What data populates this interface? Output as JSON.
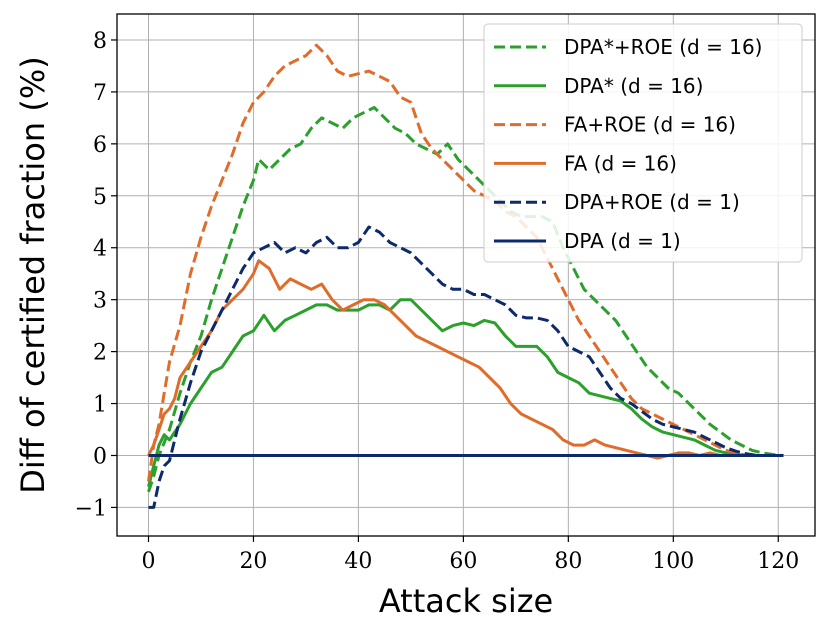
{
  "chart_data": {
    "type": "line",
    "title": "",
    "xlabel": "Attack size",
    "ylabel": "Diff of certified fraction (%)",
    "xlim": [
      -6,
      127
    ],
    "ylim": [
      -1.55,
      8.5
    ],
    "xticks": [
      0,
      20,
      40,
      60,
      80,
      100,
      120
    ],
    "yticks": [
      -1,
      0,
      1,
      2,
      3,
      4,
      5,
      6,
      7,
      8
    ],
    "xtick_labels": [
      "0",
      "20",
      "40",
      "60",
      "80",
      "100",
      "120"
    ],
    "ytick_labels": [
      "−1",
      "0",
      "1",
      "2",
      "3",
      "4",
      "5",
      "6",
      "7",
      "8"
    ],
    "grid": true,
    "legend_position": "top-right",
    "series": [
      {
        "name": "DPA*+ROE (d = 16)",
        "color": "#2ca02c",
        "dash": "dashed",
        "points": [
          [
            0,
            -0.7
          ],
          [
            1,
            -0.4
          ],
          [
            2,
            0.0
          ],
          [
            4,
            0.5
          ],
          [
            6,
            1.2
          ],
          [
            8,
            1.8
          ],
          [
            10,
            2.3
          ],
          [
            12,
            3.0
          ],
          [
            14,
            3.6
          ],
          [
            16,
            4.2
          ],
          [
            18,
            4.8
          ],
          [
            20,
            5.3
          ],
          [
            21,
            5.7
          ],
          [
            23,
            5.5
          ],
          [
            25,
            5.7
          ],
          [
            27,
            5.9
          ],
          [
            29,
            6.0
          ],
          [
            31,
            6.3
          ],
          [
            33,
            6.5
          ],
          [
            35,
            6.4
          ],
          [
            37,
            6.3
          ],
          [
            39,
            6.5
          ],
          [
            41,
            6.6
          ],
          [
            43,
            6.7
          ],
          [
            45,
            6.5
          ],
          [
            47,
            6.3
          ],
          [
            49,
            6.2
          ],
          [
            51,
            6.0
          ],
          [
            53,
            5.9
          ],
          [
            55,
            5.8
          ],
          [
            57,
            6.0
          ],
          [
            59,
            5.7
          ],
          [
            61,
            5.5
          ],
          [
            63,
            5.3
          ],
          [
            65,
            5.1
          ],
          [
            67,
            4.9
          ],
          [
            69,
            4.7
          ],
          [
            71,
            4.6
          ],
          [
            73,
            4.6
          ],
          [
            75,
            4.6
          ],
          [
            77,
            4.5
          ],
          [
            79,
            4.0
          ],
          [
            81,
            3.6
          ],
          [
            83,
            3.2
          ],
          [
            85,
            3.0
          ],
          [
            87,
            2.8
          ],
          [
            89,
            2.6
          ],
          [
            91,
            2.3
          ],
          [
            93,
            2.0
          ],
          [
            95,
            1.7
          ],
          [
            97,
            1.5
          ],
          [
            99,
            1.3
          ],
          [
            101,
            1.2
          ],
          [
            103,
            1.0
          ],
          [
            105,
            0.8
          ],
          [
            107,
            0.6
          ],
          [
            109,
            0.45
          ],
          [
            111,
            0.3
          ],
          [
            113,
            0.2
          ],
          [
            115,
            0.1
          ],
          [
            117,
            0.05
          ],
          [
            119,
            0.02
          ],
          [
            121,
            0.0
          ]
        ]
      },
      {
        "name": "DPA* (d = 16)",
        "color": "#2ca02c",
        "dash": "solid",
        "points": [
          [
            0,
            -0.6
          ],
          [
            1,
            -0.2
          ],
          [
            2,
            0.2
          ],
          [
            3,
            0.4
          ],
          [
            4,
            0.3
          ],
          [
            5,
            0.45
          ],
          [
            6,
            0.6
          ],
          [
            7,
            0.8
          ],
          [
            8,
            1.0
          ],
          [
            10,
            1.3
          ],
          [
            12,
            1.6
          ],
          [
            14,
            1.7
          ],
          [
            16,
            2.0
          ],
          [
            18,
            2.3
          ],
          [
            20,
            2.4
          ],
          [
            22,
            2.7
          ],
          [
            24,
            2.4
          ],
          [
            26,
            2.6
          ],
          [
            28,
            2.7
          ],
          [
            30,
            2.8
          ],
          [
            32,
            2.9
          ],
          [
            34,
            2.9
          ],
          [
            36,
            2.8
          ],
          [
            38,
            2.8
          ],
          [
            40,
            2.8
          ],
          [
            42,
            2.9
          ],
          [
            44,
            2.9
          ],
          [
            46,
            2.8
          ],
          [
            48,
            3.0
          ],
          [
            50,
            3.0
          ],
          [
            52,
            2.8
          ],
          [
            54,
            2.6
          ],
          [
            56,
            2.4
          ],
          [
            58,
            2.5
          ],
          [
            60,
            2.55
          ],
          [
            62,
            2.5
          ],
          [
            64,
            2.6
          ],
          [
            66,
            2.55
          ],
          [
            68,
            2.3
          ],
          [
            70,
            2.1
          ],
          [
            72,
            2.1
          ],
          [
            74,
            2.1
          ],
          [
            76,
            1.9
          ],
          [
            78,
            1.6
          ],
          [
            80,
            1.5
          ],
          [
            82,
            1.4
          ],
          [
            84,
            1.2
          ],
          [
            86,
            1.15
          ],
          [
            88,
            1.1
          ],
          [
            90,
            1.05
          ],
          [
            92,
            0.9
          ],
          [
            94,
            0.7
          ],
          [
            96,
            0.55
          ],
          [
            98,
            0.45
          ],
          [
            100,
            0.4
          ],
          [
            102,
            0.35
          ],
          [
            104,
            0.3
          ],
          [
            106,
            0.2
          ],
          [
            108,
            0.1
          ],
          [
            110,
            0.05
          ],
          [
            112,
            0.02
          ],
          [
            114,
            0.0
          ],
          [
            121,
            0.0
          ]
        ]
      },
      {
        "name": "FA+ROE (d = 16)",
        "color": "#e06c2c",
        "dash": "dashed",
        "points": [
          [
            0,
            -0.5
          ],
          [
            1,
            0.2
          ],
          [
            2,
            0.6
          ],
          [
            3,
            1.2
          ],
          [
            4,
            1.8
          ],
          [
            6,
            2.5
          ],
          [
            8,
            3.5
          ],
          [
            10,
            4.2
          ],
          [
            12,
            4.8
          ],
          [
            14,
            5.3
          ],
          [
            16,
            5.8
          ],
          [
            18,
            6.4
          ],
          [
            20,
            6.8
          ],
          [
            22,
            7.0
          ],
          [
            24,
            7.3
          ],
          [
            26,
            7.5
          ],
          [
            28,
            7.6
          ],
          [
            30,
            7.7
          ],
          [
            32,
            7.9
          ],
          [
            34,
            7.7
          ],
          [
            36,
            7.4
          ],
          [
            38,
            7.3
          ],
          [
            40,
            7.35
          ],
          [
            42,
            7.4
          ],
          [
            44,
            7.3
          ],
          [
            46,
            7.2
          ],
          [
            48,
            6.9
          ],
          [
            50,
            6.8
          ],
          [
            52,
            6.2
          ],
          [
            54,
            5.9
          ],
          [
            56,
            5.7
          ],
          [
            58,
            5.5
          ],
          [
            60,
            5.3
          ],
          [
            62,
            5.1
          ],
          [
            64,
            5.0
          ],
          [
            66,
            4.9
          ],
          [
            68,
            4.7
          ],
          [
            70,
            4.6
          ],
          [
            72,
            4.4
          ],
          [
            74,
            4.2
          ],
          [
            76,
            3.8
          ],
          [
            78,
            3.4
          ],
          [
            80,
            3.0
          ],
          [
            82,
            2.6
          ],
          [
            84,
            2.3
          ],
          [
            86,
            2.0
          ],
          [
            88,
            1.7
          ],
          [
            90,
            1.4
          ],
          [
            92,
            1.1
          ],
          [
            94,
            0.9
          ],
          [
            96,
            0.8
          ],
          [
            98,
            0.7
          ],
          [
            100,
            0.6
          ],
          [
            102,
            0.5
          ],
          [
            104,
            0.4
          ],
          [
            106,
            0.3
          ],
          [
            108,
            0.2
          ],
          [
            110,
            0.1
          ],
          [
            112,
            0.05
          ],
          [
            114,
            0.0
          ],
          [
            121,
            0.0
          ]
        ]
      },
      {
        "name": "FA (d = 16)",
        "color": "#e06c2c",
        "dash": "solid",
        "points": [
          [
            0,
            0.0
          ],
          [
            1,
            0.2
          ],
          [
            2,
            0.5
          ],
          [
            3,
            0.8
          ],
          [
            4,
            0.9
          ],
          [
            5,
            1.1
          ],
          [
            6,
            1.5
          ],
          [
            8,
            1.8
          ],
          [
            10,
            2.1
          ],
          [
            12,
            2.4
          ],
          [
            14,
            2.8
          ],
          [
            16,
            3.0
          ],
          [
            18,
            3.2
          ],
          [
            20,
            3.5
          ],
          [
            21,
            3.75
          ],
          [
            23,
            3.6
          ],
          [
            25,
            3.2
          ],
          [
            27,
            3.4
          ],
          [
            29,
            3.3
          ],
          [
            31,
            3.2
          ],
          [
            33,
            3.3
          ],
          [
            35,
            3.0
          ],
          [
            37,
            2.8
          ],
          [
            39,
            2.9
          ],
          [
            41,
            3.0
          ],
          [
            43,
            3.0
          ],
          [
            45,
            2.9
          ],
          [
            47,
            2.7
          ],
          [
            49,
            2.5
          ],
          [
            51,
            2.3
          ],
          [
            53,
            2.2
          ],
          [
            55,
            2.1
          ],
          [
            57,
            2.0
          ],
          [
            59,
            1.9
          ],
          [
            61,
            1.8
          ],
          [
            63,
            1.7
          ],
          [
            65,
            1.5
          ],
          [
            67,
            1.3
          ],
          [
            69,
            1.0
          ],
          [
            71,
            0.8
          ],
          [
            73,
            0.7
          ],
          [
            75,
            0.6
          ],
          [
            77,
            0.5
          ],
          [
            79,
            0.3
          ],
          [
            81,
            0.2
          ],
          [
            83,
            0.2
          ],
          [
            85,
            0.3
          ],
          [
            87,
            0.2
          ],
          [
            89,
            0.15
          ],
          [
            91,
            0.1
          ],
          [
            93,
            0.05
          ],
          [
            95,
            0.0
          ],
          [
            97,
            -0.05
          ],
          [
            99,
            0.0
          ],
          [
            101,
            0.05
          ],
          [
            103,
            0.05
          ],
          [
            105,
            0.0
          ],
          [
            107,
            0.05
          ],
          [
            109,
            0.0
          ],
          [
            121,
            0.0
          ]
        ]
      },
      {
        "name": "DPA+ROE (d = 1)",
        "color": "#0d2a6b",
        "dash": "dashed",
        "points": [
          [
            0,
            -1.0
          ],
          [
            1,
            -1.0
          ],
          [
            2,
            -0.5
          ],
          [
            3,
            -0.2
          ],
          [
            4,
            -0.1
          ],
          [
            5,
            0.3
          ],
          [
            6,
            0.7
          ],
          [
            8,
            1.4
          ],
          [
            10,
            2.0
          ],
          [
            12,
            2.4
          ],
          [
            14,
            2.8
          ],
          [
            16,
            3.2
          ],
          [
            18,
            3.6
          ],
          [
            20,
            3.9
          ],
          [
            22,
            4.0
          ],
          [
            24,
            4.1
          ],
          [
            26,
            3.9
          ],
          [
            28,
            4.0
          ],
          [
            30,
            3.9
          ],
          [
            32,
            4.1
          ],
          [
            34,
            4.2
          ],
          [
            36,
            4.0
          ],
          [
            38,
            4.0
          ],
          [
            40,
            4.1
          ],
          [
            42,
            4.4
          ],
          [
            44,
            4.3
          ],
          [
            46,
            4.1
          ],
          [
            48,
            4.0
          ],
          [
            50,
            3.9
          ],
          [
            52,
            3.7
          ],
          [
            54,
            3.5
          ],
          [
            56,
            3.3
          ],
          [
            58,
            3.2
          ],
          [
            60,
            3.2
          ],
          [
            62,
            3.1
          ],
          [
            64,
            3.1
          ],
          [
            66,
            3.0
          ],
          [
            68,
            2.9
          ],
          [
            70,
            2.7
          ],
          [
            72,
            2.65
          ],
          [
            74,
            2.65
          ],
          [
            76,
            2.6
          ],
          [
            78,
            2.4
          ],
          [
            80,
            2.1
          ],
          [
            82,
            2.0
          ],
          [
            84,
            1.9
          ],
          [
            86,
            1.6
          ],
          [
            88,
            1.3
          ],
          [
            90,
            1.1
          ],
          [
            92,
            1.0
          ],
          [
            94,
            0.85
          ],
          [
            96,
            0.7
          ],
          [
            98,
            0.6
          ],
          [
            100,
            0.55
          ],
          [
            102,
            0.5
          ],
          [
            104,
            0.45
          ],
          [
            106,
            0.35
          ],
          [
            108,
            0.25
          ],
          [
            110,
            0.15
          ],
          [
            112,
            0.08
          ],
          [
            114,
            0.03
          ],
          [
            116,
            0.0
          ],
          [
            121,
            0.0
          ]
        ]
      },
      {
        "name": "DPA (d = 1)",
        "color": "#0d2a6b",
        "dash": "solid",
        "points": [
          [
            0,
            0.0
          ],
          [
            121,
            0.0
          ]
        ]
      }
    ]
  }
}
